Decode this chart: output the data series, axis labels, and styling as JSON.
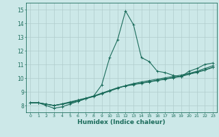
{
  "xlabel": "Humidex (Indice chaleur)",
  "ylabel": "",
  "bg_color": "#cce8e8",
  "grid_color": "#b0cccc",
  "line_color": "#1a6b5a",
  "xlim": [
    -0.5,
    23.5
  ],
  "ylim": [
    7.5,
    15.5
  ],
  "xticks": [
    0,
    1,
    2,
    3,
    4,
    5,
    6,
    7,
    8,
    9,
    10,
    11,
    12,
    13,
    14,
    15,
    16,
    17,
    18,
    19,
    20,
    21,
    22,
    23
  ],
  "yticks": [
    8,
    9,
    10,
    11,
    12,
    13,
    14,
    15
  ],
  "series": [
    [
      8.2,
      8.2,
      8.0,
      7.8,
      7.9,
      8.1,
      8.3,
      8.5,
      8.7,
      9.5,
      11.5,
      12.8,
      14.9,
      13.9,
      11.5,
      11.2,
      10.5,
      10.4,
      10.2,
      10.1,
      10.5,
      10.7,
      11.0,
      11.1
    ],
    [
      8.2,
      8.2,
      8.1,
      8.0,
      8.1,
      8.2,
      8.3,
      8.5,
      8.65,
      8.85,
      9.05,
      9.25,
      9.45,
      9.6,
      9.72,
      9.82,
      9.92,
      10.02,
      10.12,
      10.22,
      10.35,
      10.5,
      10.7,
      10.9
    ],
    [
      8.2,
      8.2,
      8.1,
      8.0,
      8.1,
      8.22,
      8.38,
      8.52,
      8.68,
      8.88,
      9.08,
      9.28,
      9.42,
      9.52,
      9.62,
      9.72,
      9.82,
      9.92,
      10.02,
      10.12,
      10.28,
      10.42,
      10.58,
      10.78
    ],
    [
      8.2,
      8.2,
      8.1,
      8.0,
      8.12,
      8.26,
      8.4,
      8.54,
      8.7,
      8.9,
      9.1,
      9.3,
      9.44,
      9.54,
      9.64,
      9.74,
      9.84,
      9.94,
      10.04,
      10.14,
      10.3,
      10.44,
      10.6,
      10.8
    ]
  ]
}
